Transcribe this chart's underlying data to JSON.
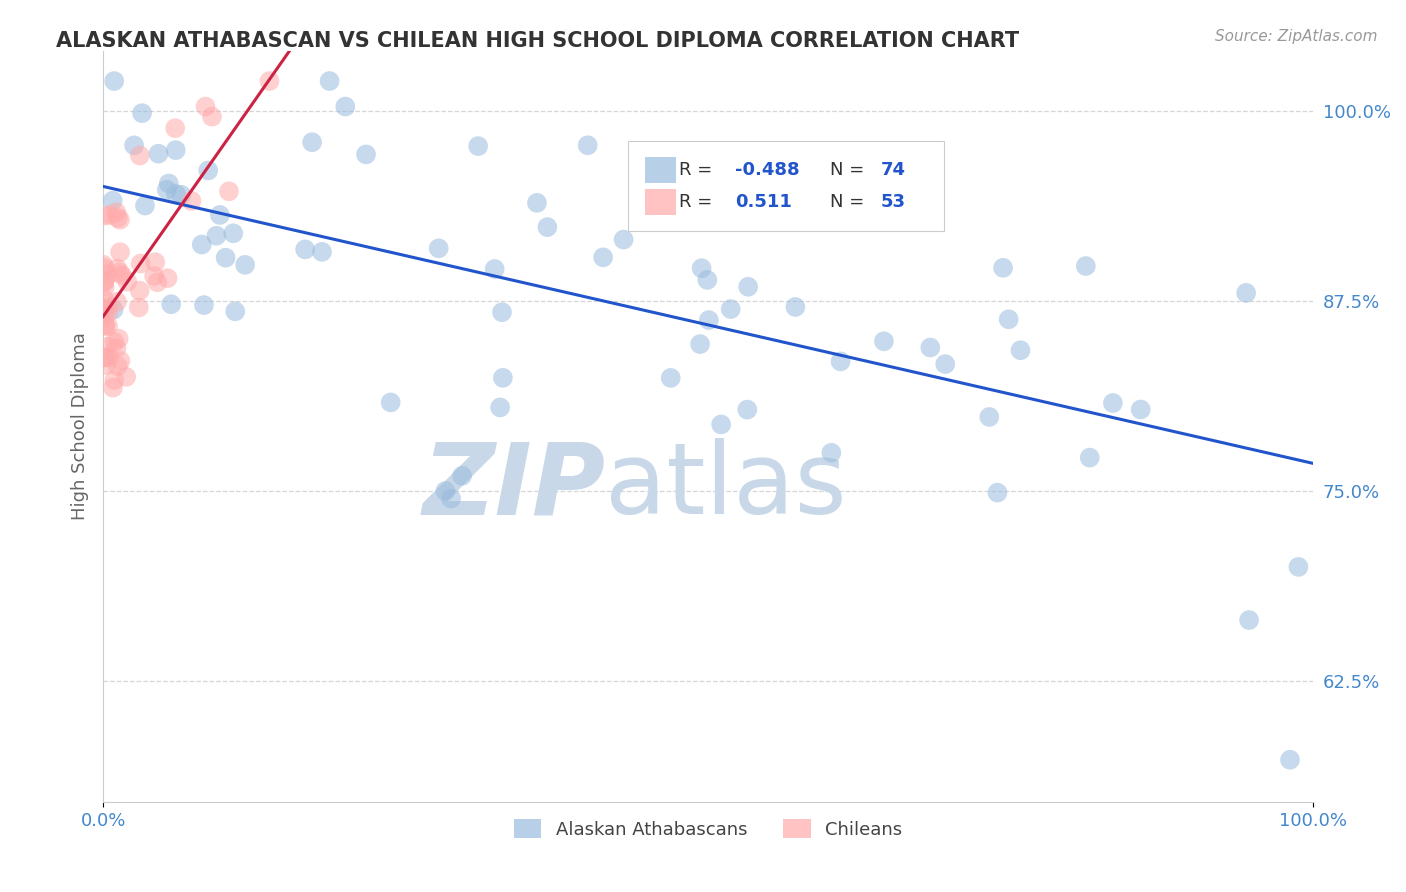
{
  "title": "ALASKAN ATHABASCAN VS CHILEAN HIGH SCHOOL DIPLOMA CORRELATION CHART",
  "source": "Source: ZipAtlas.com",
  "ylabel": "High School Diploma",
  "xlim": [
    0.0,
    1.0
  ],
  "ylim": [
    0.545,
    1.04
  ],
  "yticks": [
    0.625,
    0.75,
    0.875,
    1.0
  ],
  "ytick_labels": [
    "62.5%",
    "75.0%",
    "87.5%",
    "100.0%"
  ],
  "xtick_labels_left": [
    "0.0%"
  ],
  "xtick_labels_right": [
    "100.0%"
  ],
  "legend_blue_label": "Alaskan Athabascans",
  "legend_pink_label": "Chileans",
  "blue_color": "#99BBDD",
  "pink_color": "#FFAAAA",
  "blue_line_color": "#2255CC",
  "pink_line_color": "#CC2244",
  "background_color": "#FFFFFF",
  "grid_color": "#CCCCCC",
  "title_color": "#333333",
  "axis_label_color": "#666666",
  "tick_color": "#4488CC",
  "watermark_zip": "ZIP",
  "watermark_atlas": "atlas",
  "watermark_color": "#C8D8E8",
  "blue_r_text": "-0.488",
  "pink_r_text": "0.511",
  "blue_n_text": "74",
  "pink_n_text": "53"
}
